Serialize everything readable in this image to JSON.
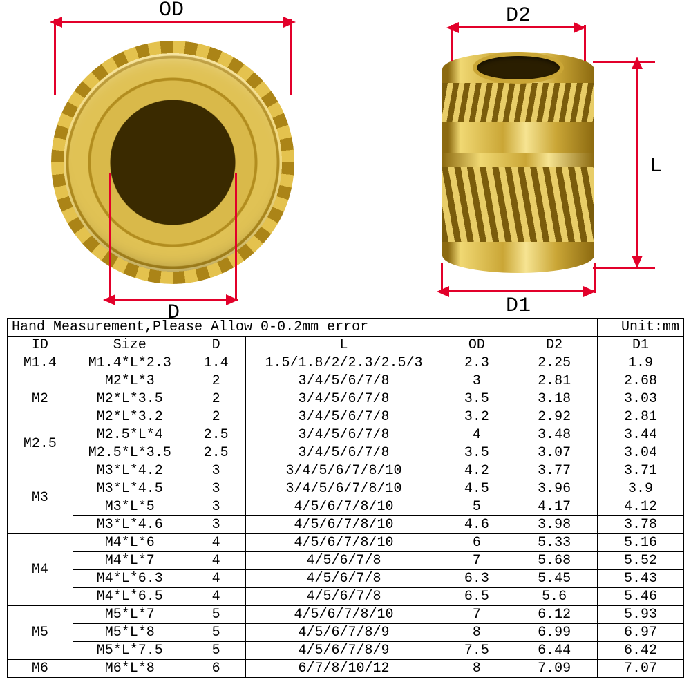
{
  "colors": {
    "dim": "#e2002a",
    "brass_light": "#f0d873",
    "brass_mid": "#caa636",
    "brass_dark": "#8c6a10",
    "border": "#000000",
    "bg": "#ffffff"
  },
  "diagram": {
    "labels": {
      "OD": "OD",
      "D": "D",
      "D1": "D1",
      "D2": "D2",
      "L": "L"
    }
  },
  "table": {
    "note_left": "Hand Measurement,Please Allow 0-0.2mm error",
    "note_right": "Unit:mm",
    "columns": [
      "ID",
      "Size",
      "D",
      "L",
      "OD",
      "D2",
      "D1"
    ],
    "groups": [
      {
        "id": "M1.4",
        "rows": [
          {
            "Size": "M1.4*L*2.3",
            "D": "1.4",
            "L": "1.5/1.8/2/2.3/2.5/3",
            "OD": "2.3",
            "D2": "2.25",
            "D1": "1.9"
          }
        ]
      },
      {
        "id": "M2",
        "rows": [
          {
            "Size": "M2*L*3",
            "D": "2",
            "L": "3/4/5/6/7/8",
            "OD": "3",
            "D2": "2.81",
            "D1": "2.68"
          },
          {
            "Size": "M2*L*3.5",
            "D": "2",
            "L": "3/4/5/6/7/8",
            "OD": "3.5",
            "D2": "3.18",
            "D1": "3.03"
          },
          {
            "Size": "M2*L*3.2",
            "D": "2",
            "L": "3/4/5/6/7/8",
            "OD": "3.2",
            "D2": "2.92",
            "D1": "2.81"
          }
        ]
      },
      {
        "id": "M2.5",
        "rows": [
          {
            "Size": "M2.5*L*4",
            "D": "2.5",
            "L": "3/4/5/6/7/8",
            "OD": "4",
            "D2": "3.48",
            "D1": "3.44"
          },
          {
            "Size": "M2.5*L*3.5",
            "D": "2.5",
            "L": "3/4/5/6/7/8",
            "OD": "3.5",
            "D2": "3.07",
            "D1": "3.04"
          }
        ]
      },
      {
        "id": "M3",
        "rows": [
          {
            "Size": "M3*L*4.2",
            "D": "3",
            "L": "3/4/5/6/7/8/10",
            "OD": "4.2",
            "D2": "3.77",
            "D1": "3.71"
          },
          {
            "Size": "M3*L*4.5",
            "D": "3",
            "L": "3/4/5/6/7/8/10",
            "OD": "4.5",
            "D2": "3.96",
            "D1": "3.9"
          },
          {
            "Size": "M3*L*5",
            "D": "3",
            "L": "4/5/6/7/8/10",
            "OD": "5",
            "D2": "4.17",
            "D1": "4.12"
          },
          {
            "Size": "M3*L*4.6",
            "D": "3",
            "L": "4/5/6/7/8/10",
            "OD": "4.6",
            "D2": "3.98",
            "D1": "3.78"
          }
        ]
      },
      {
        "id": "M4",
        "rows": [
          {
            "Size": "M4*L*6",
            "D": "4",
            "L": "4/5/6/7/8/10",
            "OD": "6",
            "D2": "5.33",
            "D1": "5.16"
          },
          {
            "Size": "M4*L*7",
            "D": "4",
            "L": "4/5/6/7/8",
            "OD": "7",
            "D2": "5.68",
            "D1": "5.52"
          },
          {
            "Size": "M4*L*6.3",
            "D": "4",
            "L": "4/5/6/7/8",
            "OD": "6.3",
            "D2": "5.45",
            "D1": "5.43"
          },
          {
            "Size": "M4*L*6.5",
            "D": "4",
            "L": "4/5/6/7/8",
            "OD": "6.5",
            "D2": "5.6",
            "D1": "5.46"
          }
        ]
      },
      {
        "id": "M5",
        "rows": [
          {
            "Size": "M5*L*7",
            "D": "5",
            "L": "4/5/6/7/8/10",
            "OD": "7",
            "D2": "6.12",
            "D1": "5.93"
          },
          {
            "Size": "M5*L*8",
            "D": "5",
            "L": "4/5/6/7/8/9",
            "OD": "8",
            "D2": "6.99",
            "D1": "6.97"
          },
          {
            "Size": "M5*L*7.5",
            "D": "5",
            "L": "4/5/6/7/8/9",
            "OD": "7.5",
            "D2": "6.44",
            "D1": "6.42"
          }
        ]
      },
      {
        "id": "M6",
        "rows": [
          {
            "Size": "M6*L*8",
            "D": "6",
            "L": "6/7/8/10/12",
            "OD": "8",
            "D2": "7.09",
            "D1": "7.07"
          }
        ]
      }
    ]
  }
}
